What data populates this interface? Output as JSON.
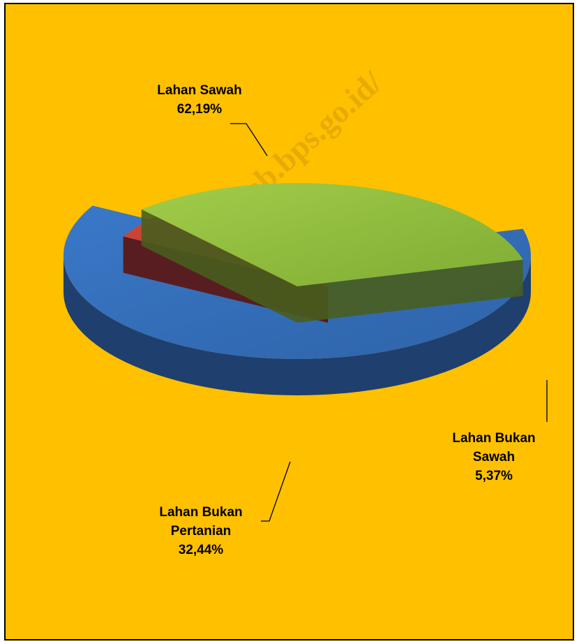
{
  "chart_data": {
    "type": "pie",
    "categories": [
      "Lahan Sawah",
      "Lahan Bukan Sawah",
      "Lahan Bukan Pertanian"
    ],
    "values": [
      62.19,
      5.37,
      32.44
    ],
    "value_labels": [
      "62,19%",
      "5,37%",
      "32,44%"
    ],
    "title": "",
    "three_d": true,
    "legend": "none",
    "colors": [
      "#3a73c0",
      "#c0392b",
      "#8fbf3f"
    ]
  },
  "labels": {
    "sawah_name": "Lahan Sawah",
    "sawah_value": "62,19%",
    "bukan_sawah_line1": "Lahan Bukan",
    "bukan_sawah_line2": "Sawah",
    "bukan_sawah_value": "5,37%",
    "bukan_pertanian_line1": "Lahan Bukan",
    "bukan_pertanian_line2": "Pertanian",
    "bukan_pertanian_value": "32,44%"
  },
  "watermark": "http://kendalkab.bps.go.id/",
  "background_color": "#ffc000"
}
